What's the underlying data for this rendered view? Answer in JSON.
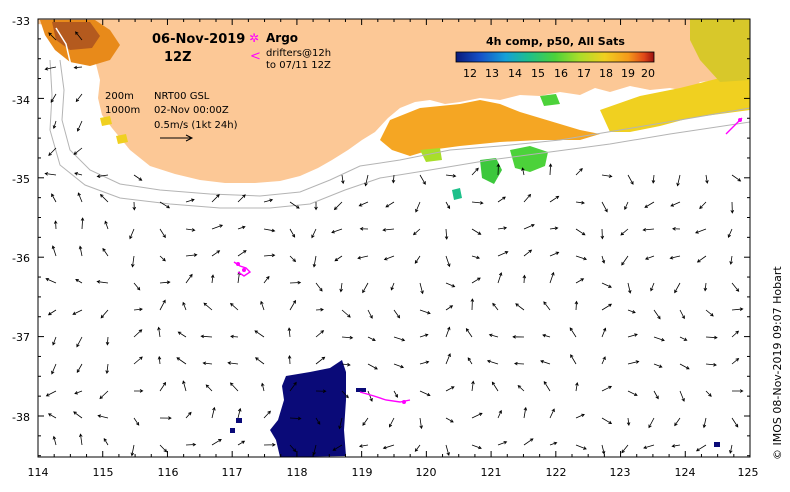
{
  "title": {
    "date": "06-Nov-2019",
    "hour": "12Z"
  },
  "legend": {
    "argo_label": "Argo",
    "drifters_line1": "drifters@12h",
    "drifters_line2": "to 07/11 12Z",
    "argo_color": "#ff00ff",
    "drifter_color": "#ff00ff"
  },
  "info": {
    "depth_200": "200m",
    "depth_1000": "1000m",
    "product": "NRT00 GSL",
    "ref_time": "02-Nov 00:00Z",
    "scale": "0.5m/s (1kt 24h)"
  },
  "colorbar": {
    "title": "4h comp, p50, All Sats",
    "ticks": [
      "12",
      "13",
      "14",
      "15",
      "16",
      "17",
      "18",
      "19",
      "20"
    ],
    "colors": [
      "#0a1a7a",
      "#1550c8",
      "#14a0d8",
      "#1ec08a",
      "#4cd23a",
      "#a8de2a",
      "#f0d020",
      "#f59a1a",
      "#e04818",
      "#9a1010"
    ]
  },
  "axes": {
    "x_ticks": [
      "114",
      "115",
      "116",
      "117",
      "118",
      "119",
      "120",
      "121",
      "122",
      "123",
      "124",
      "125"
    ],
    "y_ticks": [
      "-33",
      "-34",
      "-35",
      "-36",
      "-37",
      "-38"
    ]
  },
  "map_colors": {
    "land": "#fcc896",
    "isobath": "#b4b4b4",
    "coast_white": "#ffffff",
    "sst_cold": "#0a0a78",
    "sst_warm": "#f0a020",
    "sst_green": "#3cc83c"
  },
  "copyright": "© IMOS 08-Nov-2019 09:07 Hobart"
}
